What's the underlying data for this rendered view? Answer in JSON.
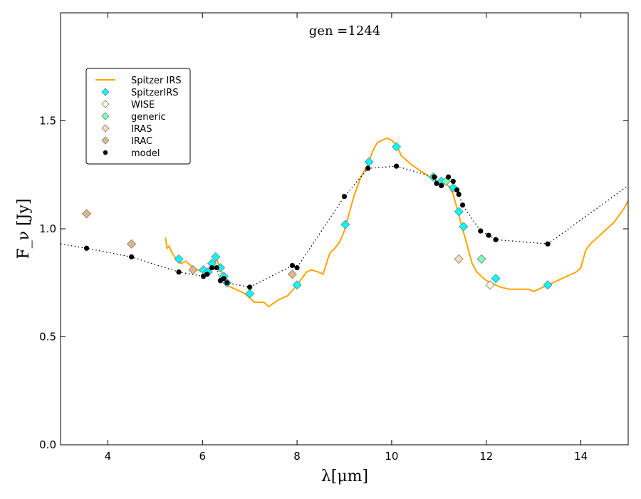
{
  "chart_data": {
    "type": "line",
    "title": "gen =1244",
    "xlabel": "λ[μm]",
    "ylabel": "F_ν [Jy]",
    "xlim": [
      3,
      15
    ],
    "ylim": [
      0.0,
      2.0
    ],
    "x_ticks": [
      4,
      6,
      8,
      10,
      12,
      14
    ],
    "x_tick_labels": [
      "4",
      "6",
      "8",
      "10",
      "12",
      "14"
    ],
    "y_ticks": [
      0.0,
      0.5,
      1.0,
      1.5
    ],
    "y_tick_labels": [
      "0.0",
      "0.5",
      "1.0",
      "1.5"
    ],
    "grid": false,
    "legend_position": "upper-left",
    "colors": {
      "spitzer_irs_line": "#FFA500",
      "spitzerirs_marker": "#00FFFF",
      "wise_marker": "#FFFDE0",
      "generic_marker": "#7FFFC0",
      "iras_marker": "#FFDAB9",
      "irac_marker": "#DEB887",
      "model": "#000000"
    },
    "legend": [
      {
        "label": "Spitzer IRS",
        "kind": "line",
        "color": "#FFA500"
      },
      {
        "label": "SpitzerIRS",
        "kind": "diamond",
        "color": "#00FFFF"
      },
      {
        "label": "WISE",
        "kind": "diamond",
        "color": "#FFFDE0"
      },
      {
        "label": "generic",
        "kind": "diamond",
        "color": "#7FFFC0"
      },
      {
        "label": "IRAS",
        "kind": "diamond",
        "color": "#FFDAB9"
      },
      {
        "label": "IRAC",
        "kind": "diamond",
        "color": "#DEB887"
      },
      {
        "label": "model",
        "kind": "dot",
        "color": "#000000"
      }
    ],
    "series": [
      {
        "name": "Spitzer IRS",
        "kind": "line",
        "color": "#FFA500",
        "x": [
          5.22,
          5.25,
          5.3,
          5.35,
          5.45,
          5.55,
          5.65,
          5.8,
          6.0,
          6.2,
          6.3,
          6.4,
          6.5,
          6.7,
          6.9,
          7.1,
          7.3,
          7.4,
          7.6,
          7.8,
          8.0,
          8.1,
          8.2,
          8.3,
          8.45,
          8.55,
          8.65,
          8.7,
          8.8,
          8.9,
          9.0,
          9.1,
          9.2,
          9.35,
          9.5,
          9.6,
          9.7,
          9.8,
          9.9,
          10.0,
          10.1,
          10.2,
          10.4,
          10.6,
          10.8,
          11.0,
          11.2,
          11.3,
          11.4,
          11.5,
          11.6,
          11.7,
          11.8,
          11.9,
          12.0,
          12.1,
          12.2,
          12.3,
          12.5,
          12.7,
          12.9,
          13.0,
          13.2,
          13.4,
          13.6,
          13.8,
          13.9,
          14.0,
          14.1,
          14.2,
          14.3,
          14.4,
          14.5,
          14.6,
          14.7,
          14.8,
          14.9,
          15.0
        ],
        "y": [
          0.96,
          0.91,
          0.92,
          0.89,
          0.86,
          0.84,
          0.85,
          0.82,
          0.8,
          0.82,
          0.86,
          0.8,
          0.74,
          0.72,
          0.7,
          0.66,
          0.66,
          0.64,
          0.67,
          0.69,
          0.74,
          0.77,
          0.8,
          0.81,
          0.8,
          0.79,
          0.86,
          0.89,
          0.91,
          0.94,
          0.99,
          1.07,
          1.15,
          1.24,
          1.3,
          1.36,
          1.4,
          1.41,
          1.42,
          1.41,
          1.39,
          1.34,
          1.3,
          1.27,
          1.24,
          1.22,
          1.2,
          1.16,
          1.08,
          1.0,
          0.92,
          0.84,
          0.8,
          0.78,
          0.76,
          0.75,
          0.74,
          0.73,
          0.72,
          0.72,
          0.72,
          0.71,
          0.73,
          0.75,
          0.77,
          0.79,
          0.8,
          0.82,
          0.9,
          0.93,
          0.95,
          0.97,
          0.99,
          1.01,
          1.03,
          1.06,
          1.09,
          1.13
        ]
      },
      {
        "name": "SpitzerIRS",
        "kind": "diamond",
        "color": "#00FFFF",
        "x": [
          5.5,
          6.02,
          6.12,
          6.2,
          6.28,
          6.38,
          6.45,
          6.52,
          7.0,
          8.0,
          9.02,
          9.52,
          10.1,
          10.88,
          11.05,
          11.3,
          11.42,
          11.52,
          12.2,
          13.3
        ],
        "y": [
          0.86,
          0.81,
          0.8,
          0.84,
          0.87,
          0.82,
          0.78,
          0.75,
          0.7,
          0.74,
          1.02,
          1.31,
          1.38,
          1.24,
          1.22,
          1.19,
          1.08,
          1.01,
          0.77,
          0.74
        ]
      },
      {
        "name": "WISE",
        "kind": "diamond",
        "color": "#FFFDE0",
        "x": [
          12.08
        ],
        "y": [
          0.74
        ]
      },
      {
        "name": "generic",
        "kind": "diamond",
        "color": "#7FFFC0",
        "x": [
          11.15,
          11.9
        ],
        "y": [
          1.22,
          0.86
        ]
      },
      {
        "name": "IRAS",
        "kind": "diamond",
        "color": "#FFDAB9",
        "x": [
          11.42
        ],
        "y": [
          0.86
        ]
      },
      {
        "name": "IRAC",
        "kind": "diamond",
        "color": "#DEB887",
        "x": [
          3.55,
          4.5,
          5.8,
          7.9
        ],
        "y": [
          1.07,
          0.93,
          0.81,
          0.79
        ]
      },
      {
        "name": "model",
        "kind": "dotted-line",
        "color": "#000000",
        "x": [
          3.0,
          3.55,
          4.5,
          5.5,
          6.02,
          6.1,
          6.2,
          6.3,
          6.38,
          6.45,
          6.52,
          7.0,
          7.9,
          8.0,
          9.0,
          9.5,
          10.1,
          10.9,
          10.95,
          11.05,
          11.2,
          11.3,
          11.38,
          11.42,
          11.5,
          11.88,
          12.05,
          12.2,
          13.3,
          15.0
        ],
        "y": [
          0.93,
          0.91,
          0.87,
          0.8,
          0.78,
          0.79,
          0.82,
          0.82,
          0.76,
          0.77,
          0.75,
          0.73,
          0.83,
          0.82,
          1.15,
          1.28,
          1.29,
          1.24,
          1.21,
          1.2,
          1.24,
          1.22,
          1.18,
          1.16,
          1.11,
          0.99,
          0.97,
          0.95,
          0.93,
          1.2
        ]
      }
    ]
  }
}
